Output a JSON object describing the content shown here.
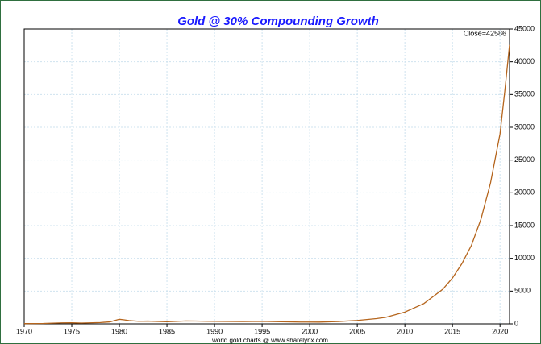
{
  "chart_data": {
    "type": "line",
    "title": "Gold @ 30% Compounding Growth",
    "annotation": "Close=42586",
    "footer": "world gold charts @ www.sharelynx.com",
    "x": [
      1970,
      1972,
      1974,
      1975,
      1976,
      1978,
      1979,
      1980,
      1980.5,
      1981,
      1982,
      1983,
      1985,
      1987,
      1988,
      1990,
      1993,
      1995,
      1997,
      1999,
      2001,
      2003,
      2005,
      2007,
      2008,
      2010,
      2012,
      2014,
      2015,
      2016,
      2017,
      2018,
      2019,
      2020,
      2020.5,
      2021
    ],
    "series": [
      {
        "name": "Close",
        "color": "#b5651d",
        "values": [
          36,
          60,
          150,
          160,
          125,
          200,
          300,
          700,
          620,
          500,
          400,
          420,
          320,
          450,
          430,
          380,
          360,
          385,
          330,
          280,
          270,
          360,
          520,
          800,
          1000,
          1800,
          3100,
          5300,
          7000,
          9200,
          12000,
          16000,
          21500,
          29000,
          35500,
          42586
        ]
      }
    ],
    "xlim": [
      1970,
      2021
    ],
    "xticks": [
      1970,
      1975,
      1980,
      1985,
      1990,
      1995,
      2000,
      2005,
      2010,
      2015,
      2020
    ],
    "ylim": [
      0,
      45000
    ],
    "yticks": [
      0,
      5000,
      10000,
      15000,
      20000,
      25000,
      30000,
      35000,
      40000,
      45000
    ],
    "grid": true
  }
}
